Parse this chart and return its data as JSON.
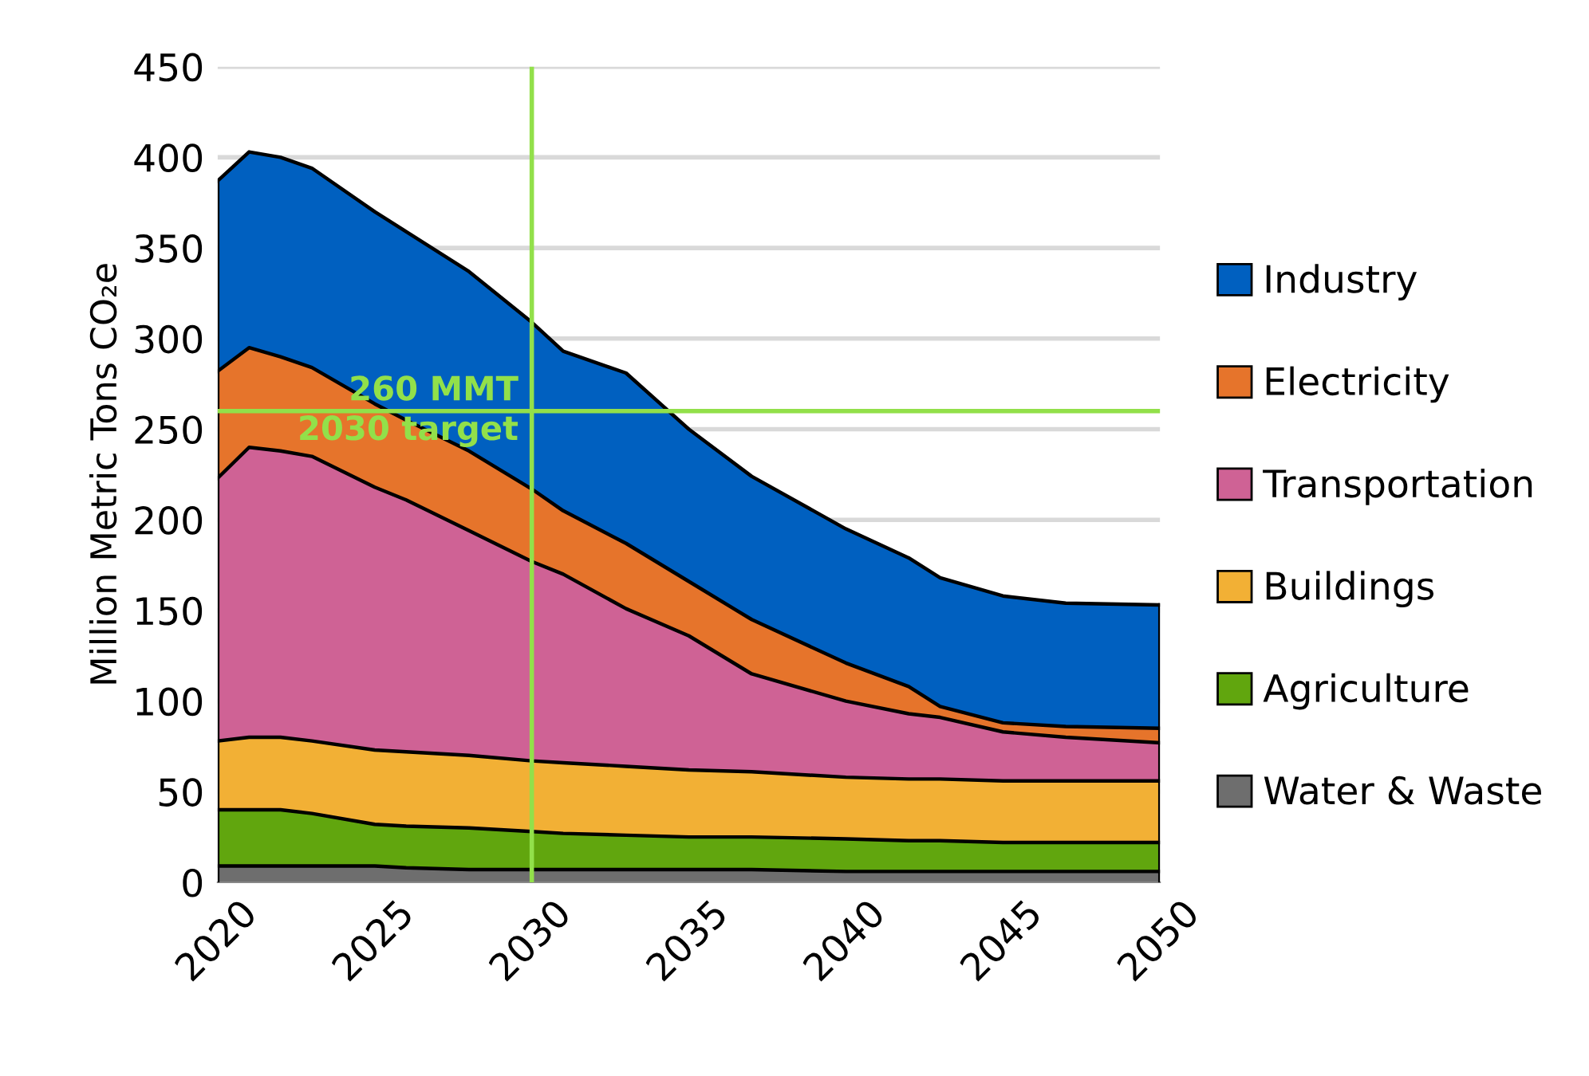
{
  "chart_data": {
    "type": "area",
    "stacked": true,
    "ylabel": "Million Metric Tons CO₂e",
    "x": [
      2020,
      2021,
      2022,
      2023,
      2025,
      2026,
      2028,
      2030,
      2031,
      2033,
      2035,
      2037,
      2040,
      2042,
      2043,
      2045,
      2047,
      2050
    ],
    "series": [
      {
        "name": "Water & Waste",
        "color": "#6e6e6e",
        "values": [
          9,
          9,
          9,
          9,
          9,
          8,
          7,
          7,
          7,
          7,
          7,
          7,
          6,
          6,
          6,
          6,
          6,
          6
        ]
      },
      {
        "name": "Agriculture",
        "color": "#61a60e",
        "values": [
          31,
          31,
          31,
          29,
          23,
          23,
          23,
          21,
          20,
          19,
          18,
          18,
          18,
          17,
          17,
          16,
          16,
          16
        ]
      },
      {
        "name": "Buildings",
        "color": "#f2b035",
        "values": [
          38,
          40,
          40,
          40,
          41,
          41,
          40,
          39,
          39,
          38,
          37,
          36,
          34,
          34,
          34,
          34,
          34,
          34
        ]
      },
      {
        "name": "Transportation",
        "color": "#cf6295",
        "values": [
          145,
          160,
          158,
          157,
          145,
          139,
          124,
          110,
          104,
          87,
          74,
          54,
          42,
          36,
          34,
          27,
          24,
          21
        ]
      },
      {
        "name": "Electricity",
        "color": "#e6742b",
        "values": [
          59,
          55,
          52,
          49,
          46,
          44,
          44,
          40,
          35,
          36,
          30,
          30,
          21,
          15,
          6,
          5,
          6,
          8
        ]
      },
      {
        "name": "Industry",
        "color": "#0060c0",
        "values": [
          105,
          108,
          110,
          110,
          106,
          104,
          99,
          92,
          88,
          94,
          84,
          79,
          74,
          71,
          71,
          70,
          68,
          68
        ]
      }
    ],
    "xlim": [
      2020,
      2050
    ],
    "xticks": [
      2020,
      2025,
      2030,
      2035,
      2040,
      2045,
      2050
    ],
    "ylim": [
      0,
      450
    ],
    "yticks": [
      0,
      50,
      100,
      150,
      200,
      250,
      300,
      350,
      400,
      450
    ],
    "grid": "y",
    "legend": "right",
    "ref_lines": [
      {
        "axis": "x",
        "value": 2030,
        "color": "#92e04a"
      },
      {
        "axis": "y",
        "value": 260,
        "label": "260 MMT\n2030 target",
        "color": "#92e04a"
      }
    ]
  }
}
